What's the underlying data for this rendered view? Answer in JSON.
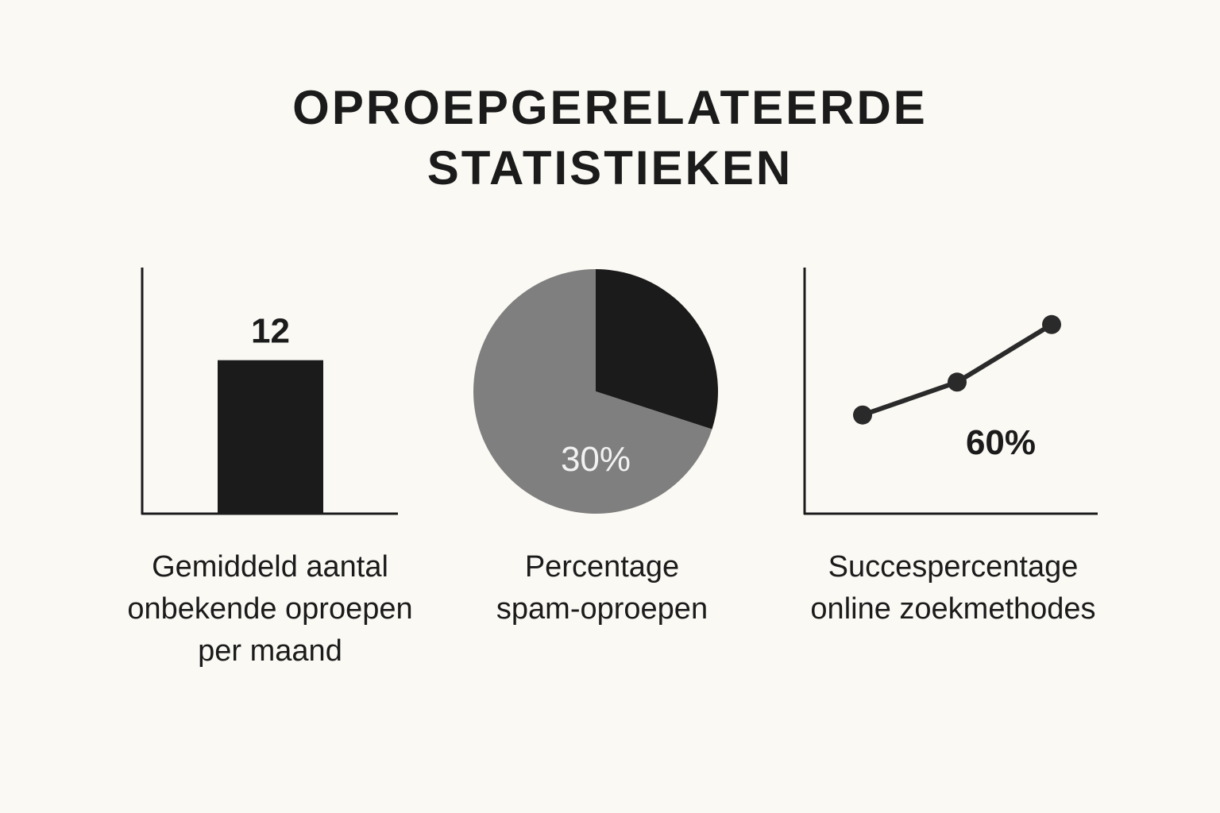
{
  "title": {
    "line1": "OPROEPGERELATEERDE",
    "line2": "STATISTIEKEN"
  },
  "chart_data": [
    {
      "type": "bar",
      "categories": [
        ""
      ],
      "values": [
        12
      ],
      "data_labels": [
        "12"
      ],
      "caption_lines": [
        "Gemiddeld aantal",
        "onbekende oproepen",
        "per maand"
      ],
      "ylim": [
        0,
        18
      ],
      "color": "#1b1b1b"
    },
    {
      "type": "pie",
      "slices": [
        {
          "value": 30,
          "color": "#1b1b1b"
        },
        {
          "value": 70,
          "color": "#7f7f7f"
        }
      ],
      "data_labels": [
        "30%"
      ],
      "caption_lines": [
        "Percentage",
        "spam-oproepen"
      ]
    },
    {
      "type": "line",
      "x": [
        1,
        2,
        3
      ],
      "values": [
        60,
        80,
        115
      ],
      "data_labels": [
        "60%"
      ],
      "caption_lines": [
        "Succespercentage",
        "online zoekmethodes"
      ],
      "color": "#2a2a2a"
    }
  ],
  "colors": {
    "background": "#faf9f4",
    "ink": "#1b1b1b",
    "pie_label": "#f2f2f2"
  }
}
